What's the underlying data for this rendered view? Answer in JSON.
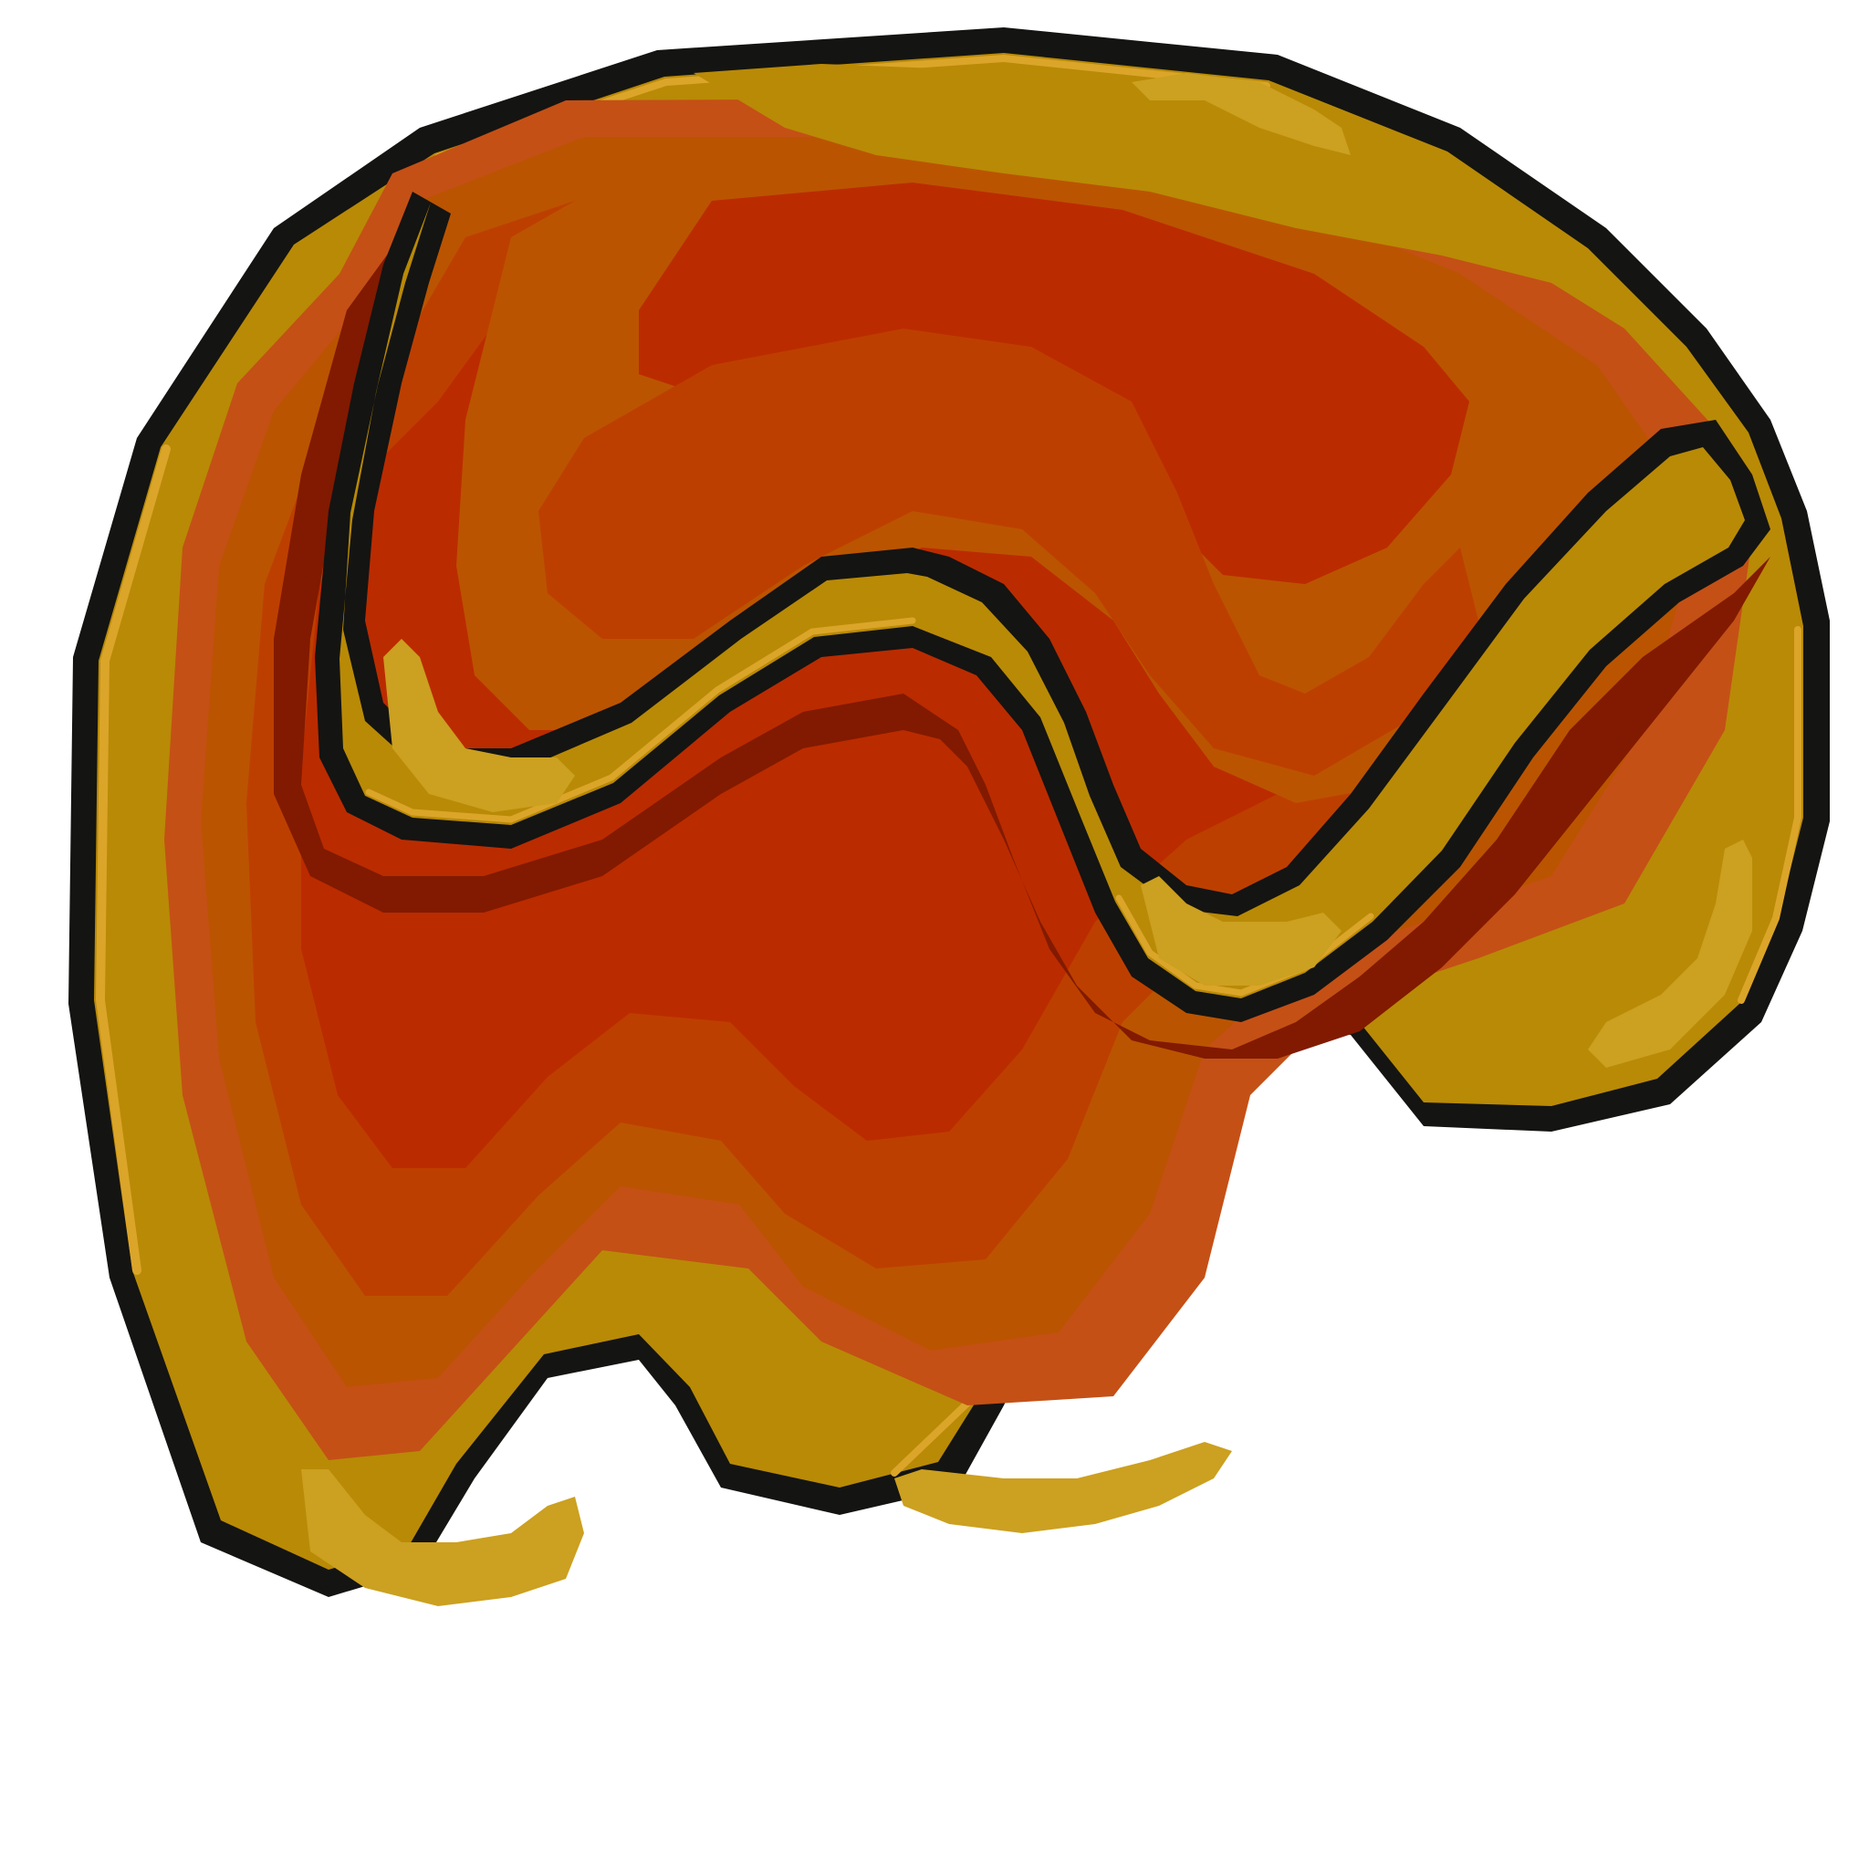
{
  "sprite": {
    "icon": "caramel-blob-icon",
    "colors": {
      "background": "#ffffff",
      "outline": "#141412",
      "gold": "#b98a06",
      "gold_rim": "#dba52a",
      "highlight": "#cca020",
      "orange_outer": "#c45016",
      "orange_band": "#bb5400",
      "orange_mid": "#bd3f00",
      "red_core": "#bb2b00",
      "shadow": "#811a00"
    }
  }
}
